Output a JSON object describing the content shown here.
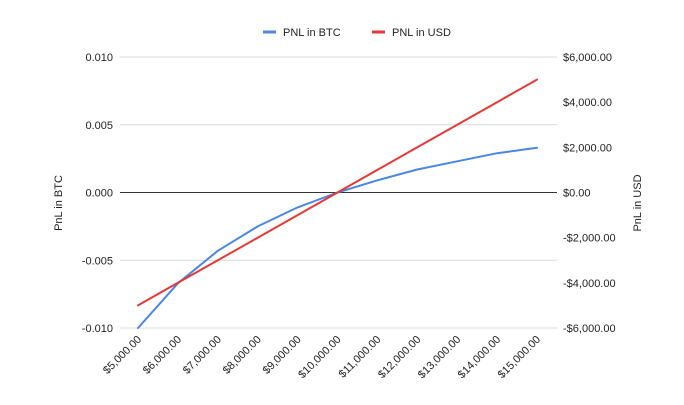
{
  "chart_data": {
    "type": "line",
    "x": [
      5000,
      6000,
      7000,
      8000,
      9000,
      10000,
      11000,
      12000,
      13000,
      14000,
      15000
    ],
    "x_tick_labels": [
      "$5,000.00",
      "$6,000.00",
      "$7,000.00",
      "$8,000.00",
      "$9,000.00",
      "$10,000.00",
      "$11,000.00",
      "$12,000.00",
      "$13,000.00",
      "$14,000.00",
      "$15,000.00"
    ],
    "series": [
      {
        "name": "PNL in BTC",
        "axis": "left",
        "color": "#4a86e8",
        "values": [
          -0.01,
          -0.0067,
          -0.0043,
          -0.0025,
          -0.0011,
          0.0,
          0.0009,
          0.0017,
          0.0023,
          0.0029,
          0.0033
        ]
      },
      {
        "name": "PNL in USD",
        "axis": "right",
        "color": "#e53935",
        "values": [
          -5000,
          -4000,
          -3000,
          -2000,
          -1000,
          0,
          1000,
          2000,
          3000,
          4000,
          5000
        ]
      }
    ],
    "y_left": {
      "label": "PnL in BTC",
      "ylim": [
        -0.01,
        0.01
      ],
      "ticks": [
        0.01,
        0.005,
        0.0,
        -0.005,
        -0.01
      ],
      "tick_labels": [
        "0.010",
        "0.005",
        "0.000",
        "-0.005",
        "-0.010"
      ]
    },
    "y_right": {
      "label": "PnL in USD",
      "ylim": [
        -6000,
        6000
      ],
      "ticks": [
        6000,
        4000,
        2000,
        0,
        -2000,
        -4000,
        -6000
      ],
      "tick_labels": [
        "$6,000.00",
        "$4,000.00",
        "$2,000.00",
        "$0.00",
        "-$2,000.00",
        "-$4,000.00",
        "-$6,000.00"
      ]
    },
    "grid": true,
    "legend": "top-center"
  }
}
